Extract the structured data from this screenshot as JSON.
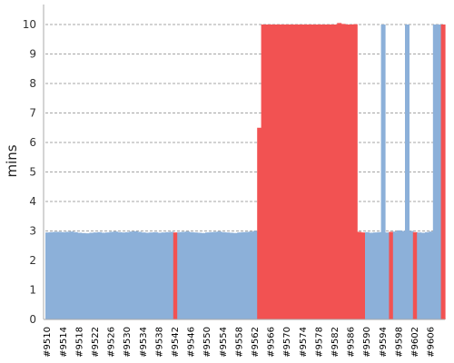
{
  "chart_data": {
    "type": "area",
    "ylabel": "mins",
    "xlabel": "",
    "ylim": [
      0,
      10
    ],
    "y_ticks": [
      0,
      1,
      2,
      3,
      4,
      5,
      6,
      7,
      8,
      9,
      10
    ],
    "grid": "horizontal dashed",
    "x_tick_labels": [
      "#9510",
      "#9514",
      "#9518",
      "#9522",
      "#9526",
      "#9530",
      "#9534",
      "#9538",
      "#9542",
      "#9546",
      "#9550",
      "#9554",
      "#9558",
      "#9562",
      "#9566",
      "#9570",
      "#9574",
      "#9578",
      "#9582",
      "#9586",
      "#9590",
      "#9594",
      "#9598",
      "#9602",
      "#9606"
    ],
    "x_start": 9510,
    "x_end": 9609,
    "colors": {
      "pass": "#8cb0d9",
      "fail": "#f25252",
      "grid": "#888888",
      "axis": "#aaaaaa"
    },
    "values": [
      2.95,
      2.96,
      2.97,
      2.97,
      2.96,
      2.97,
      2.98,
      2.96,
      2.94,
      2.93,
      2.92,
      2.94,
      2.95,
      2.96,
      2.94,
      2.95,
      2.97,
      2.98,
      2.96,
      2.95,
      2.96,
      2.98,
      2.99,
      2.97,
      2.95,
      2.94,
      2.95,
      2.96,
      2.94,
      2.95,
      2.96,
      2.97,
      2.95,
      2.96,
      2.97,
      2.98,
      2.96,
      2.95,
      2.94,
      2.93,
      2.95,
      2.96,
      2.97,
      2.98,
      2.96,
      2.95,
      2.94,
      2.93,
      2.95,
      2.96,
      2.97,
      2.98,
      3.0,
      6.5,
      10.0,
      10.0,
      10.0,
      10.0,
      10.0,
      10.0,
      10.0,
      10.0,
      10.0,
      10.0,
      10.0,
      10.0,
      10.0,
      10.0,
      10.0,
      10.0,
      10.0,
      10.0,
      10.0,
      10.05,
      10.02,
      10.0,
      10.0,
      10.01,
      2.97,
      2.95,
      2.96,
      2.94,
      2.95,
      2.96,
      10.0,
      2.95,
      2.97,
      2.98,
      3.02,
      3.0,
      10.0,
      3.0,
      2.96,
      2.95,
      2.94,
      2.96,
      2.98,
      10.0,
      10.0,
      10.0
    ],
    "failed": [
      0,
      0,
      0,
      0,
      0,
      0,
      0,
      0,
      0,
      0,
      0,
      0,
      0,
      0,
      0,
      0,
      0,
      0,
      0,
      0,
      0,
      0,
      0,
      0,
      0,
      0,
      0,
      0,
      0,
      0,
      0,
      0,
      1,
      0,
      0,
      0,
      0,
      0,
      0,
      0,
      0,
      0,
      0,
      0,
      0,
      0,
      0,
      0,
      0,
      0,
      0,
      0,
      0,
      1,
      1,
      1,
      1,
      1,
      1,
      1,
      1,
      1,
      1,
      1,
      1,
      1,
      1,
      1,
      1,
      1,
      1,
      1,
      1,
      1,
      1,
      1,
      1,
      1,
      1,
      1,
      0,
      0,
      0,
      0,
      0,
      0,
      1,
      0,
      0,
      0,
      0,
      0,
      1,
      0,
      0,
      0,
      0,
      0,
      0,
      1,
      1,
      1
    ]
  }
}
